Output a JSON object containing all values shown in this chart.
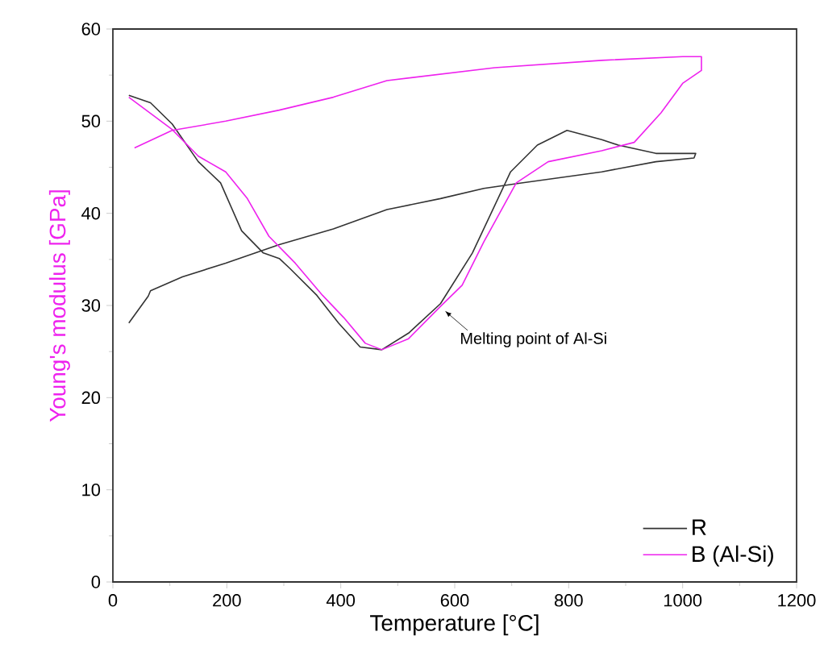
{
  "chart_data": {
    "type": "line",
    "xlabel": "Temperature [°C]",
    "ylabel": "Young's modulus [GPa]",
    "xlim": [
      0,
      1200
    ],
    "xticks": [
      0,
      200,
      400,
      600,
      800,
      1000,
      1200
    ],
    "ylim": [
      0,
      60
    ],
    "yticks": [
      0,
      10,
      20,
      30,
      40,
      50,
      60
    ],
    "legend": "bottom right",
    "grid": false,
    "marker": "none",
    "line_style": "solid",
    "annotations": [
      {
        "text": "Melting point of Al-Si",
        "x": 583,
        "y": 29.4
      }
    ],
    "series": [
      {
        "name": "R",
        "color": "#333333",
        "x": [
          28,
          66,
          104,
          150,
          189,
          226,
          264,
          292,
          311,
          358,
          396,
          434,
          472,
          519,
          575,
          631,
          698,
          745,
          797,
          858,
          887,
          953,
          1023,
          1020,
          953,
          858,
          717,
          651,
          575,
          481,
          387,
          292,
          198,
          122,
          66,
          62,
          28
        ],
        "values": [
          52.8,
          52,
          49.7,
          45.6,
          43.3,
          38.1,
          35.7,
          35.1,
          34,
          31.1,
          28.1,
          25.5,
          25.2,
          27,
          30.2,
          35.7,
          44.5,
          47.4,
          49,
          48,
          47.4,
          46.5,
          46.5,
          46,
          45.6,
          44.5,
          43.3,
          42.7,
          41.6,
          40.4,
          38.3,
          36.6,
          34.6,
          33.1,
          31.6,
          31,
          28.1
        ]
      },
      {
        "name": "B (Al-Si)",
        "color": "#ee22ee",
        "x": [
          28,
          104,
          150,
          198,
          236,
          274,
          320,
          368,
          405,
          443,
          472,
          519,
          575,
          613,
          651,
          708,
          764,
          858,
          915,
          962,
          1000,
          1033,
          1033,
          1000,
          858,
          670,
          481,
          387,
          292,
          198,
          104,
          38
        ],
        "values": [
          52.6,
          49.1,
          46.2,
          44.5,
          41.6,
          37.5,
          34.6,
          31.1,
          28.7,
          25.9,
          25.2,
          26.4,
          29.9,
          32.2,
          36.9,
          43.3,
          45.6,
          46.8,
          47.7,
          50.9,
          54.1,
          55.5,
          57,
          57,
          56.6,
          55.8,
          54.4,
          52.6,
          51.2,
          50,
          49,
          47.1
        ]
      }
    ]
  }
}
